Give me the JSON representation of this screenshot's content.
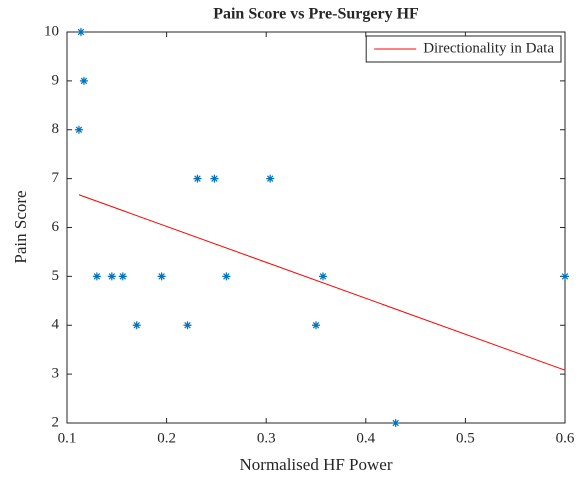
{
  "chart_data": {
    "type": "scatter",
    "title": "Pain Score vs Pre-Surgery HF",
    "xlabel": "Normalised HF Power",
    "ylabel": "Pain Score",
    "xlim": [
      0.1,
      0.6
    ],
    "xticks": [
      0.1,
      0.2,
      0.3,
      0.4,
      0.5,
      0.6
    ],
    "ylim": [
      2,
      10
    ],
    "yticks": [
      2,
      3,
      4,
      5,
      6,
      7,
      8,
      9,
      10
    ],
    "grid": false,
    "legend": "upper right",
    "series": [
      {
        "type": "scatter",
        "marker": "*",
        "color": "#0072bd",
        "x": [
          0.112,
          0.114,
          0.117,
          0.13,
          0.145,
          0.156,
          0.17,
          0.195,
          0.221,
          0.231,
          0.248,
          0.26,
          0.304,
          0.35,
          0.357,
          0.43,
          0.6
        ],
        "values": [
          8,
          10,
          9,
          5,
          5,
          5,
          4,
          5,
          4,
          7,
          7,
          5,
          7,
          4,
          5,
          2,
          5
        ]
      },
      {
        "type": "line",
        "name": "Directionality in Data",
        "color": "#ff0000",
        "x": [
          0.112,
          0.6
        ],
        "values": [
          6.67,
          3.08
        ]
      }
    ]
  }
}
